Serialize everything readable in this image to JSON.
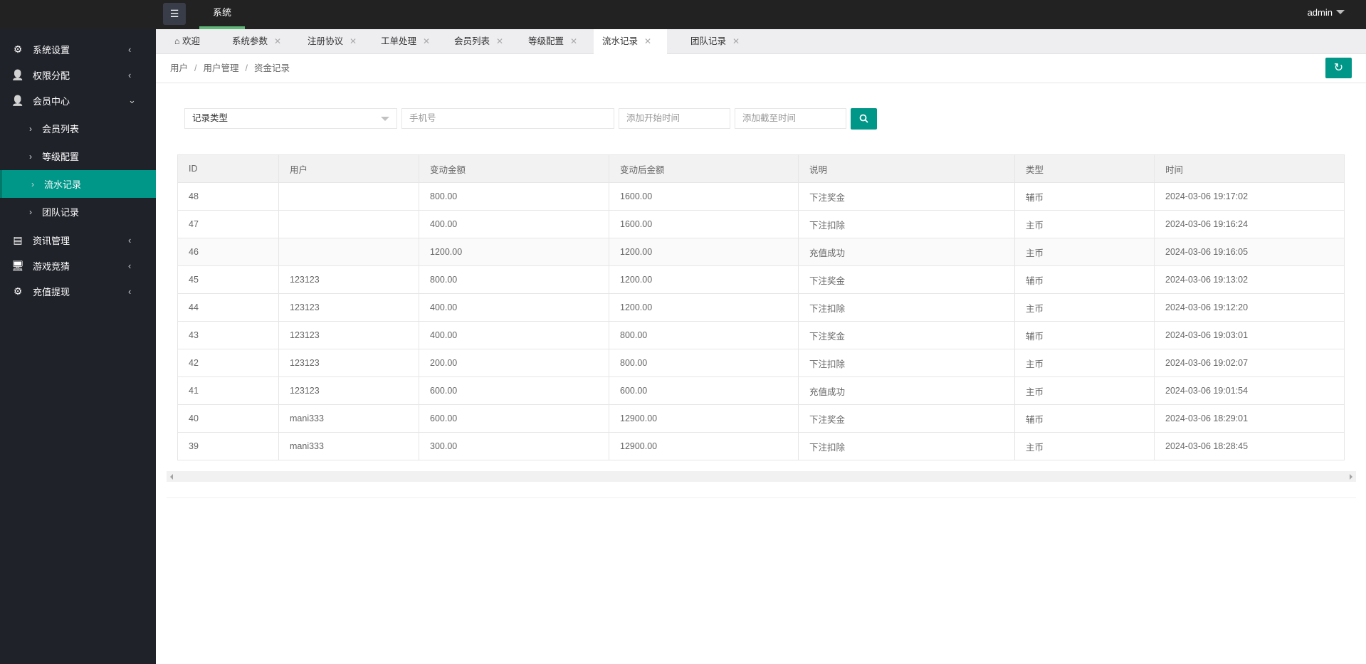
{
  "topbar": {
    "menu_icon": "hamburger-icon",
    "nav_tab": "系统",
    "user": "admin"
  },
  "sidebar": {
    "items": [
      {
        "label": "系统设置",
        "icon": "gear-icon",
        "arrow": "‹"
      },
      {
        "label": "权限分配",
        "icon": "user-tie-icon",
        "arrow": "‹"
      },
      {
        "label": "会员中心",
        "icon": "user-icon",
        "arrow": "⌄"
      },
      {
        "label": "会员列表",
        "arrow": "›"
      },
      {
        "label": "等级配置",
        "arrow": "›"
      },
      {
        "label": "流水记录",
        "arrow": "›",
        "active": true
      },
      {
        "label": "团队记录",
        "arrow": "›"
      },
      {
        "label": "资讯管理",
        "icon": "news-icon",
        "arrow": "‹"
      },
      {
        "label": "游戏竞猜",
        "icon": "monitor-icon",
        "arrow": "‹"
      },
      {
        "label": "充值提现",
        "icon": "gear-icon",
        "arrow": "‹"
      }
    ]
  },
  "tabs": [
    {
      "label": "欢迎",
      "icon": "home-icon"
    },
    {
      "label": "系统参数"
    },
    {
      "label": "注册协议"
    },
    {
      "label": "工单处理"
    },
    {
      "label": "会员列表"
    },
    {
      "label": "等级配置"
    },
    {
      "label": "流水记录",
      "active": true
    },
    {
      "label": "团队记录"
    }
  ],
  "breadcrumb": [
    "用户",
    "用户管理",
    "资金记录"
  ],
  "filters": {
    "type_select": "记录类型",
    "phone_placeholder": "手机号",
    "start_placeholder": "添加开始时间",
    "end_placeholder": "添加截至时间"
  },
  "accent_color": "#009688",
  "table": {
    "headers": [
      "ID",
      "用户",
      "变动金额",
      "变动后金额",
      "说明",
      "类型",
      "时间"
    ],
    "rows": [
      [
        "48",
        "",
        "800.00",
        "1600.00",
        "下注奖金",
        "辅币",
        "2024-03-06 19:17:02"
      ],
      [
        "47",
        "",
        "400.00",
        "1600.00",
        "下注扣除",
        "主币",
        "2024-03-06 19:16:24"
      ],
      [
        "46",
        "",
        "1200.00",
        "1200.00",
        "充值成功",
        "主币",
        "2024-03-06 19:16:05"
      ],
      [
        "45",
        "123123",
        "800.00",
        "1200.00",
        "下注奖金",
        "辅币",
        "2024-03-06 19:13:02"
      ],
      [
        "44",
        "123123",
        "400.00",
        "1200.00",
        "下注扣除",
        "主币",
        "2024-03-06 19:12:20"
      ],
      [
        "43",
        "123123",
        "400.00",
        "800.00",
        "下注奖金",
        "辅币",
        "2024-03-06 19:03:01"
      ],
      [
        "42",
        "123123",
        "200.00",
        "800.00",
        "下注扣除",
        "主币",
        "2024-03-06 19:02:07"
      ],
      [
        "41",
        "123123",
        "600.00",
        "600.00",
        "充值成功",
        "主币",
        "2024-03-06 19:01:54"
      ],
      [
        "40",
        "mani333",
        "600.00",
        "12900.00",
        "下注奖金",
        "辅币",
        "2024-03-06 18:29:01"
      ],
      [
        "39",
        "mani333",
        "300.00",
        "12900.00",
        "下注扣除",
        "主币",
        "2024-03-06 18:28:45"
      ]
    ]
  }
}
